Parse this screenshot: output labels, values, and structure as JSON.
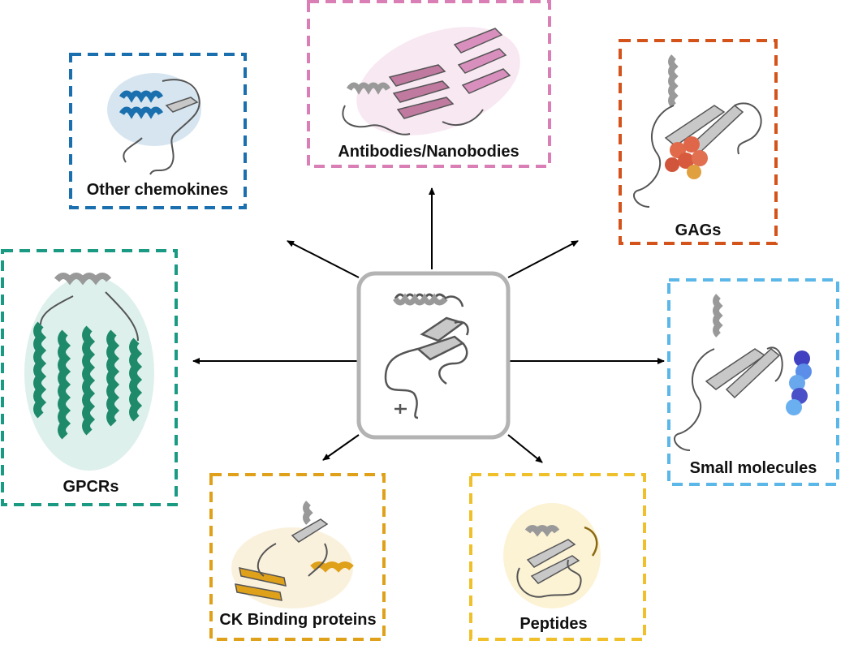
{
  "nodes": {
    "center": {
      "label": ""
    },
    "other_chemokines": {
      "label": "Other chemokines",
      "color": "#1a6fae"
    },
    "antibodies": {
      "label": "Antibodies/Nanobodies",
      "color": "#d97fb5"
    },
    "gags": {
      "label": "GAGs",
      "color": "#d4531a"
    },
    "gpcrs": {
      "label": "GPCRs",
      "color": "#1a9a82"
    },
    "small_molecules": {
      "label": "Small molecules",
      "color": "#5ab7e8"
    },
    "ck_binding": {
      "label": "CK Binding proteins",
      "color": "#e0a11a"
    },
    "peptides": {
      "label": "Peptides",
      "color": "#f0c02a"
    }
  },
  "colors": {
    "center_border": "#b3b3b3",
    "arrow": "#000000",
    "protein_grey": "#c8c8c8",
    "protein_outline": "#555555"
  }
}
